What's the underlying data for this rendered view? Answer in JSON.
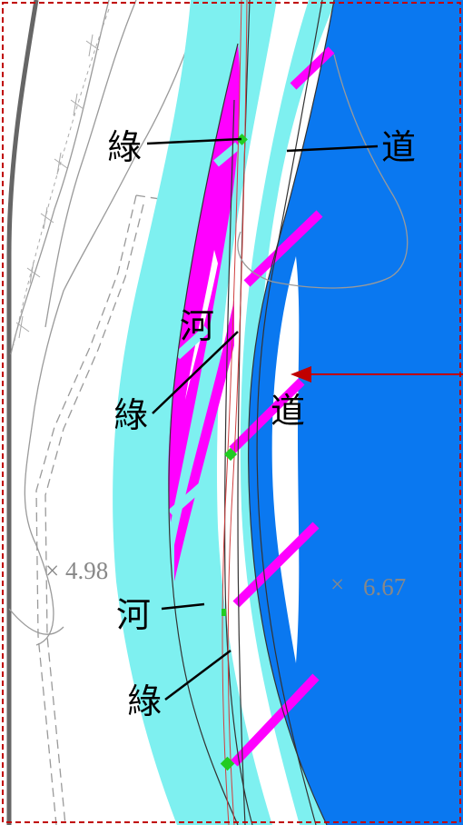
{
  "labels": {
    "lyu_1": "綠",
    "dao_1": "道",
    "he_1": "河",
    "lyu_2": "綠",
    "dao_2": "道",
    "he_2": "河",
    "lyu_3": "綠"
  },
  "spot_elevations": [
    {
      "marker": "×",
      "value": "4.98"
    },
    {
      "marker": "×",
      "value": "6.67"
    }
  ],
  "colors": {
    "water": "#0a78f0",
    "river_corridor": "#7ef0f0",
    "green_zone": "#ff00ff",
    "node": "#22cc22",
    "arrow": "#c00000",
    "frame": "#c00000",
    "contour": "#888888",
    "dark_edge": "#666666"
  },
  "icons": {
    "direction": "arrow-left-icon",
    "spot_height": "cross-marker-icon"
  }
}
